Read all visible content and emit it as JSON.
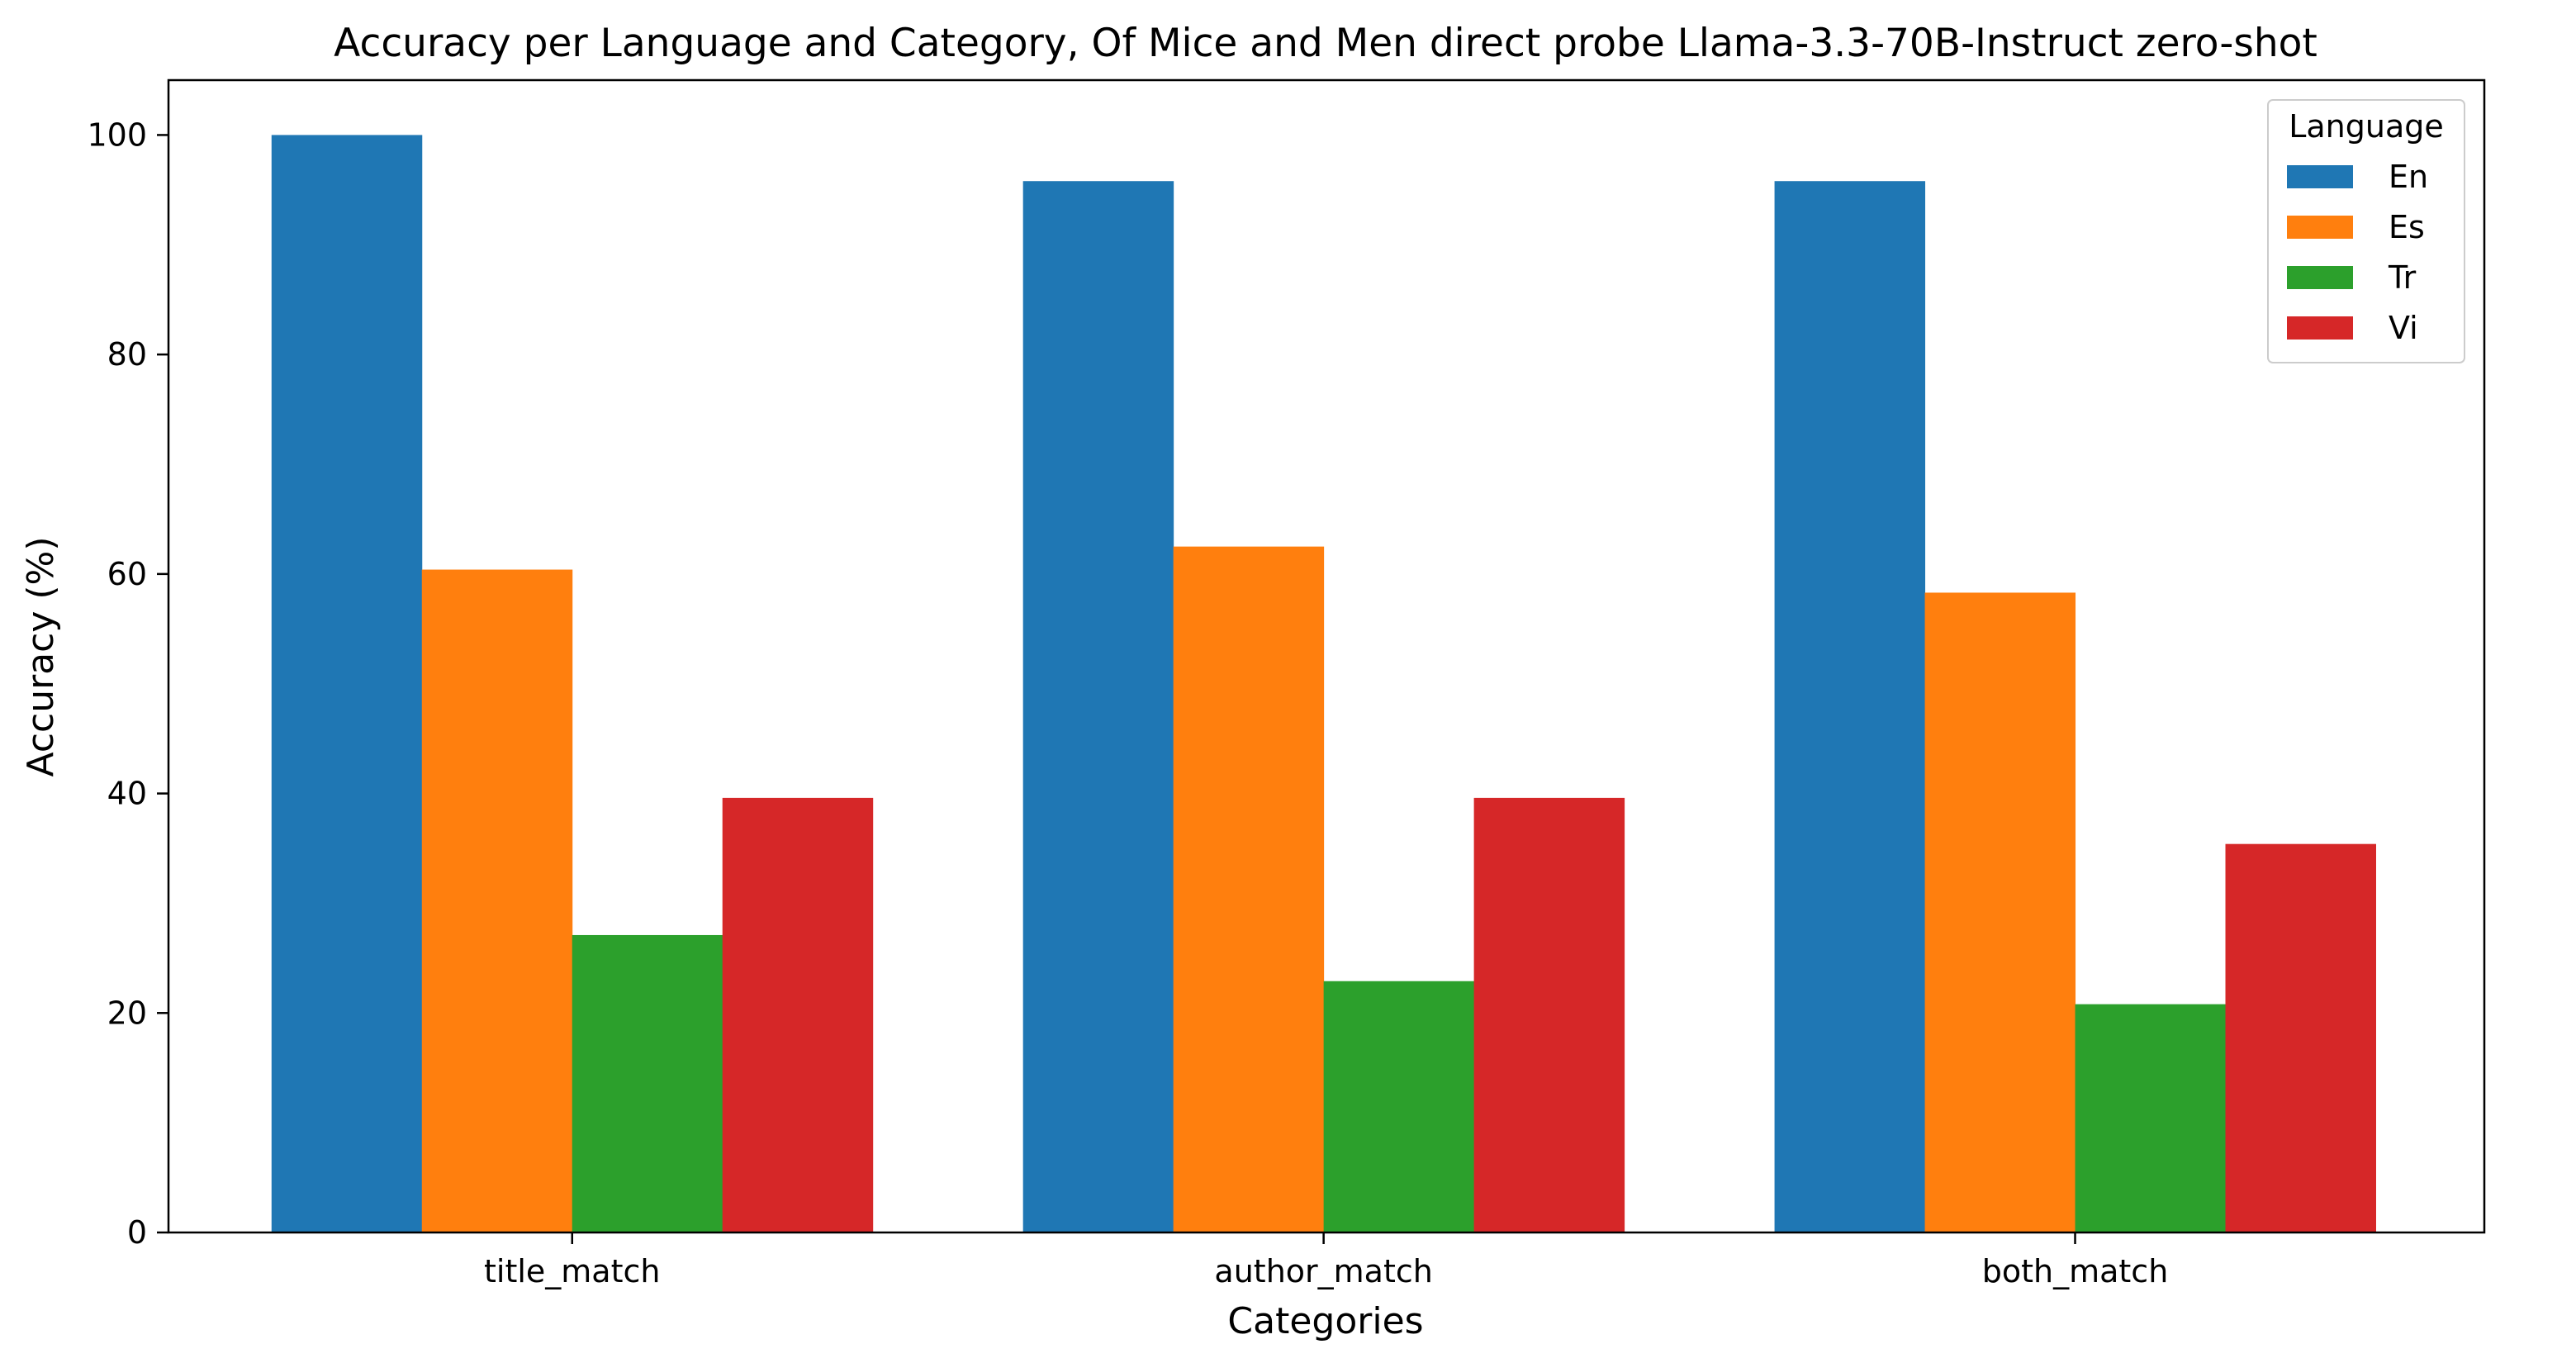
{
  "chart_data": {
    "type": "bar",
    "title": "Accuracy per Language and Category, Of Mice and Men direct probe Llama-3.3-70B-Instruct zero-shot",
    "xlabel": "Categories",
    "ylabel": "Accuracy (%)",
    "ylim": [
      0,
      105
    ],
    "yticks": [
      0,
      20,
      40,
      60,
      80,
      100
    ],
    "grid": false,
    "legend_title": "Language",
    "legend_placement": "top-right",
    "categories": [
      "title_match",
      "author_match",
      "both_match"
    ],
    "series": [
      {
        "name": "En",
        "color": "#1f77b4",
        "values": [
          100,
          95.8,
          95.8
        ]
      },
      {
        "name": "Es",
        "color": "#ff7f0e",
        "values": [
          60.4,
          62.5,
          58.3
        ]
      },
      {
        "name": "Tr",
        "color": "#2ca02c",
        "values": [
          27.1,
          22.9,
          20.8
        ]
      },
      {
        "name": "Vi",
        "color": "#d62728",
        "values": [
          39.6,
          39.6,
          35.4
        ]
      }
    ]
  }
}
